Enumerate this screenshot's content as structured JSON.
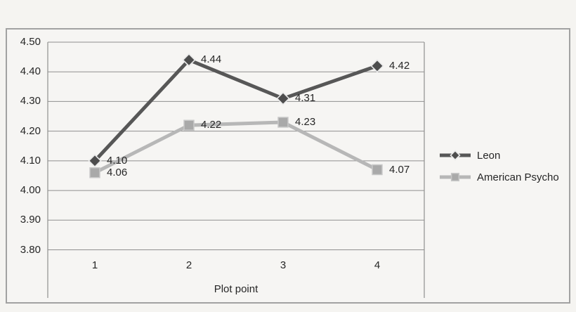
{
  "chart_data": {
    "type": "line",
    "title": "",
    "xlabel": "Plot point",
    "ylabel": "",
    "categories": [
      "1",
      "2",
      "3",
      "4"
    ],
    "series": [
      {
        "name": "Leon",
        "values": [
          4.1,
          4.44,
          4.31,
          4.42
        ],
        "data_labels": [
          "4.10",
          "4.44",
          "4.31",
          "4.42"
        ],
        "color": "#575757",
        "marker": "diamond",
        "marker_color": "#4d4d4d"
      },
      {
        "name": "American Psycho",
        "values": [
          4.06,
          4.22,
          4.23,
          4.07
        ],
        "data_labels": [
          "4.06",
          "4.22",
          "4.23",
          "4.07"
        ],
        "color": "#b7b7b7",
        "marker": "square",
        "marker_color": "#a9a9a9"
      }
    ],
    "ylim": [
      3.8,
      4.5
    ],
    "ytick_step": 0.1,
    "yticks": [
      "4.50",
      "4.40",
      "4.30",
      "4.20",
      "4.10",
      "4.00",
      "3.90",
      "3.80"
    ],
    "grid": "horizontal-only",
    "legend_position": "right-middle",
    "colors": {
      "background": "#f5f4f1",
      "frame_border": "#a2a2a2",
      "gridline": "#8f8f8f",
      "text": "#262626",
      "marker_halo": "#e9e9e9",
      "square_edge": "#c8c8c8"
    }
  }
}
